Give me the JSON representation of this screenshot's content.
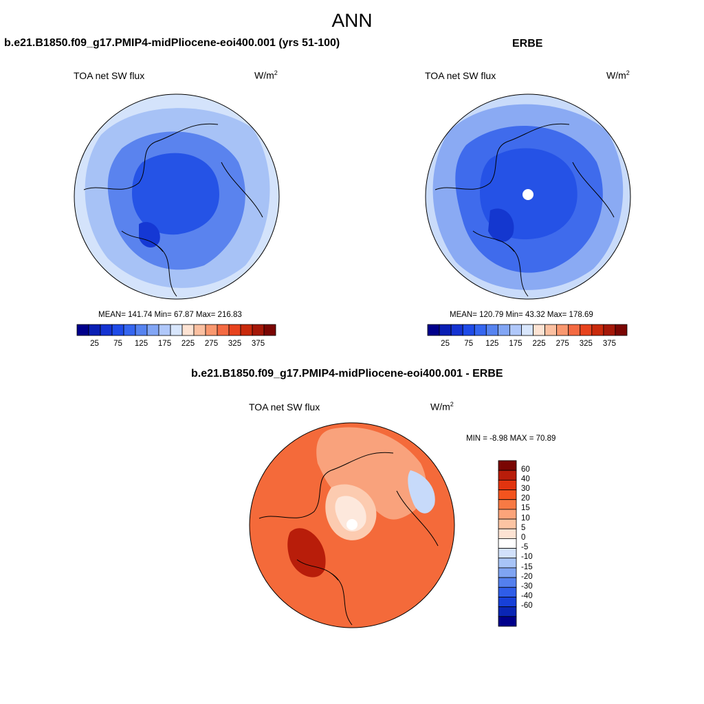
{
  "title": "ANN",
  "panels": [
    {
      "header": "b.e21.B1850.f09_g17.PMIP4-midPliocene-eoi400.001 (yrs 51-100)",
      "variable": "TOA net SW flux",
      "unit_base": "W/m",
      "unit_exp": "2",
      "stats": "MEAN= 141.74  Min=  67.87  Max= 216.83"
    },
    {
      "header": "ERBE",
      "variable": "TOA net SW flux",
      "unit_base": "W/m",
      "unit_exp": "2",
      "stats": "MEAN= 120.79  Min=  43.32  Max= 178.69"
    },
    {
      "header": "b.e21.B1850.f09_g17.PMIP4-midPliocene-eoi400.001 - ERBE",
      "variable": "TOA net SW flux",
      "unit_base": "W/m",
      "unit_exp": "2",
      "stats": "MIN =  -8.98 MAX =  70.89"
    }
  ],
  "abs_colorbar": {
    "colors": [
      "#00008b",
      "#0a1fb4",
      "#1533d2",
      "#1f4be8",
      "#3566f0",
      "#5683f0",
      "#82a6f5",
      "#b0c8fa",
      "#d8e6fc",
      "#fde3d3",
      "#fbc0a1",
      "#f9986f",
      "#f46a42",
      "#e8431e",
      "#c92a0c",
      "#a51808",
      "#7a0603"
    ],
    "ticks": [
      "25",
      "75",
      "125",
      "175",
      "225",
      "275",
      "325",
      "375"
    ]
  },
  "diff_colorbar": {
    "colors": [
      "#7a0603",
      "#b81d0a",
      "#e2340f",
      "#f4541e",
      "#f87a44",
      "#fba47a",
      "#fcc4a3",
      "#fde3d3",
      "#ffffff",
      "#d2e1fb",
      "#a8c4f7",
      "#7fa4f2",
      "#5480ee",
      "#2f5de8",
      "#1740d8",
      "#0a26b5",
      "#00008b"
    ],
    "ticks": [
      "60",
      "40",
      "30",
      "20",
      "15",
      "10",
      "5",
      "0",
      "-5",
      "-10",
      "-15",
      "-20",
      "-30",
      "-40",
      "-60"
    ]
  },
  "map_fills": {
    "model": {
      "outer": "#d4e3fb",
      "mid": "#a7c2f6",
      "inner": "#5a83ee",
      "core": "#2553e6",
      "deep": "#1538d4"
    },
    "obs": {
      "outer": "#c9dbfa",
      "mid": "#8aaaf3",
      "inner": "#3f6bec",
      "core": "#2552e6",
      "deep": "#1437cf"
    },
    "diff": {
      "outer": "#f46a3a",
      "mid": "#f9a27c",
      "inner": "#fccbb0",
      "core": "#fde8dc",
      "deep": "#b81d0a",
      "blue": "#c7dafa"
    }
  }
}
